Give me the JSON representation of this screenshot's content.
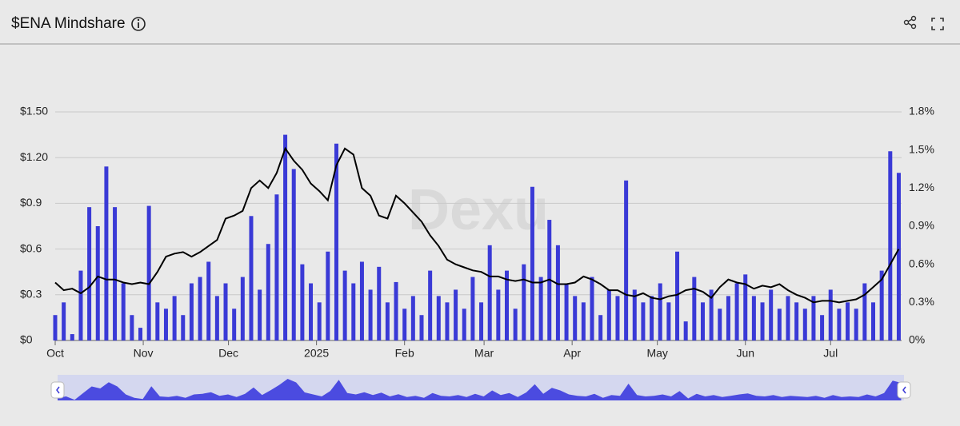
{
  "header": {
    "title": "$ENA Mindshare"
  },
  "chart_data": {
    "type": "bar-line",
    "watermark": "Dexu",
    "x": [
      0,
      3,
      6,
      9,
      12,
      15,
      18,
      21,
      24,
      27,
      30,
      33,
      36,
      39,
      42,
      45,
      48,
      51,
      54,
      57,
      60,
      63,
      66,
      69,
      72,
      75,
      78,
      81,
      84,
      87,
      90,
      93,
      96,
      99,
      102,
      105,
      108,
      111,
      114,
      117,
      120,
      123,
      126,
      129,
      132,
      135,
      138,
      141,
      144,
      147,
      150,
      153,
      156,
      159,
      162,
      165,
      168,
      171,
      174,
      177,
      180,
      183,
      186,
      189,
      192,
      195,
      198,
      201,
      204,
      207,
      210,
      213,
      216,
      219,
      222,
      225,
      228,
      231,
      234,
      237,
      240,
      243,
      246,
      249,
      252,
      255,
      258,
      261,
      264,
      267,
      270,
      273,
      276,
      279,
      282,
      285,
      288,
      291,
      294,
      297
    ],
    "xlim": [
      0,
      298
    ],
    "xticks": [
      {
        "value": 0,
        "label": "Oct"
      },
      {
        "value": 31,
        "label": "Nov"
      },
      {
        "value": 61,
        "label": "Dec"
      },
      {
        "value": 92,
        "label": "2025"
      },
      {
        "value": 123,
        "label": "Feb"
      },
      {
        "value": 151,
        "label": "Mar"
      },
      {
        "value": 182,
        "label": "Apr"
      },
      {
        "value": 212,
        "label": "May"
      },
      {
        "value": 243,
        "label": "Jun"
      },
      {
        "value": 273,
        "label": "Jul"
      }
    ],
    "ylim": [
      0,
      1.5
    ],
    "yticks": [
      {
        "value": 0,
        "label": "$0"
      },
      {
        "value": 0.3,
        "label": "$0.3"
      },
      {
        "value": 0.6,
        "label": "$0.6"
      },
      {
        "value": 0.9,
        "label": "$0.9"
      },
      {
        "value": 1.2,
        "label": "$1.20"
      },
      {
        "value": 1.5,
        "label": "$1.50"
      }
    ],
    "y2lim": [
      0,
      1.8
    ],
    "y2ticks": [
      {
        "value": 0,
        "label": "0%"
      },
      {
        "value": 0.3,
        "label": "0.3%"
      },
      {
        "value": 0.6,
        "label": "0.6%"
      },
      {
        "value": 0.9,
        "label": "0.9%"
      },
      {
        "value": 1.2,
        "label": "1.2%"
      },
      {
        "value": 1.5,
        "label": "1.5%"
      },
      {
        "value": 1.8,
        "label": "1.8%"
      }
    ],
    "grid": true,
    "series": [
      {
        "type": "line",
        "color": "#000000",
        "values": [
          0.38,
          0.33,
          0.34,
          0.31,
          0.35,
          0.42,
          0.4,
          0.4,
          0.38,
          0.37,
          0.38,
          0.37,
          0.45,
          0.55,
          0.57,
          0.58,
          0.55,
          0.58,
          0.62,
          0.66,
          0.8,
          0.82,
          0.85,
          1.0,
          1.05,
          1.0,
          1.1,
          1.26,
          1.18,
          1.12,
          1.03,
          0.98,
          0.92,
          1.15,
          1.26,
          1.22,
          1.0,
          0.95,
          0.82,
          0.8,
          0.95,
          0.9,
          0.84,
          0.78,
          0.69,
          0.62,
          0.53,
          0.5,
          0.48,
          0.46,
          0.45,
          0.42,
          0.42,
          0.4,
          0.39,
          0.4,
          0.38,
          0.38,
          0.4,
          0.37,
          0.37,
          0.38,
          0.42,
          0.4,
          0.37,
          0.33,
          0.33,
          0.3,
          0.29,
          0.31,
          0.28,
          0.27,
          0.29,
          0.3,
          0.33,
          0.34,
          0.32,
          0.28,
          0.35,
          0.4,
          0.38,
          0.37,
          0.34,
          0.36,
          0.35,
          0.37,
          0.33,
          0.3,
          0.28,
          0.25,
          0.26,
          0.26,
          0.25,
          0.26,
          0.27,
          0.3,
          0.35,
          0.4,
          0.5,
          0.6
        ]
      },
      {
        "type": "bar",
        "axis": "y2",
        "color": "#3a3ad6",
        "values": [
          0.2,
          0.3,
          0.05,
          0.55,
          1.05,
          0.9,
          1.37,
          1.05,
          0.45,
          0.2,
          0.1,
          1.06,
          0.3,
          0.25,
          0.35,
          0.2,
          0.45,
          0.5,
          0.62,
          0.35,
          0.45,
          0.25,
          0.5,
          0.98,
          0.4,
          0.76,
          1.15,
          1.62,
          1.35,
          0.6,
          0.45,
          0.3,
          0.7,
          1.55,
          0.55,
          0.45,
          0.62,
          0.4,
          0.58,
          0.3,
          0.46,
          0.25,
          0.35,
          0.2,
          0.55,
          0.35,
          0.3,
          0.4,
          0.25,
          0.5,
          0.3,
          0.75,
          0.4,
          0.55,
          0.25,
          0.6,
          1.21,
          0.5,
          0.95,
          0.75,
          0.45,
          0.35,
          0.3,
          0.5,
          0.2,
          0.4,
          0.35,
          1.26,
          0.4,
          0.3,
          0.35,
          0.45,
          0.3,
          0.7,
          0.15,
          0.5,
          0.3,
          0.4,
          0.25,
          0.35,
          0.45,
          0.52,
          0.35,
          0.3,
          0.4,
          0.25,
          0.35,
          0.3,
          0.25,
          0.35,
          0.2,
          0.4,
          0.25,
          0.3,
          0.25,
          0.45,
          0.3,
          0.55,
          1.49,
          1.32
        ]
      }
    ]
  }
}
